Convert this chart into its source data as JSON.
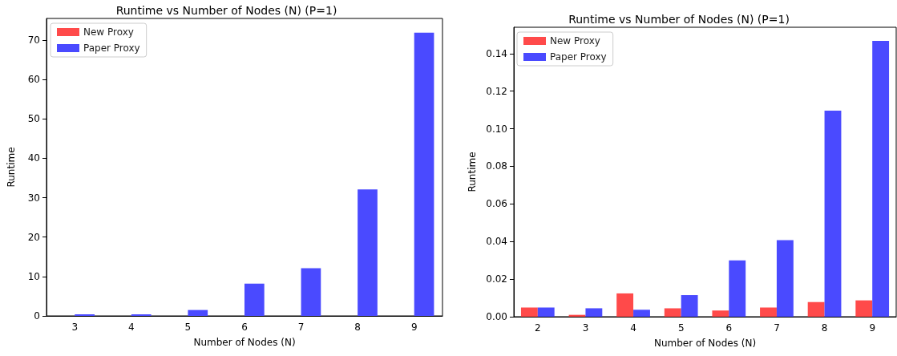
{
  "chart_data": [
    {
      "type": "bar",
      "title": "Runtime vs Number of Nodes (N) (P=1)",
      "xlabel": "Number of Nodes (N)",
      "ylabel": "Runtime",
      "categories": [
        "3",
        "4",
        "5",
        "6",
        "7",
        "8",
        "9"
      ],
      "series": [
        {
          "name": "New Proxy",
          "color": "#ff4a4a",
          "values": [
            0,
            0,
            0,
            0,
            0,
            0,
            0
          ]
        },
        {
          "name": "Paper Proxy",
          "color": "#4a4aff",
          "values": [
            0.4,
            0.4,
            1.5,
            8.2,
            12.1,
            32.1,
            71.9
          ]
        }
      ],
      "ylim": [
        0,
        75.5
      ],
      "yticks": [
        0,
        10,
        20,
        30,
        40,
        50,
        60,
        70
      ],
      "legend": "top left",
      "grid": false
    },
    {
      "type": "bar",
      "title": "Runtime vs Number of Nodes (N) (P=1)",
      "xlabel": "Number of Nodes (N)",
      "ylabel": "Runtime",
      "categories": [
        "2",
        "3",
        "4",
        "5",
        "6",
        "7",
        "8",
        "9"
      ],
      "series": [
        {
          "name": "New Proxy",
          "color": "#ff4a4a",
          "values": [
            0.0049,
            0.001,
            0.0124,
            0.0045,
            0.0033,
            0.0049,
            0.0078,
            0.0087
          ]
        },
        {
          "name": "Paper Proxy",
          "color": "#4a4aff",
          "values": [
            0.0049,
            0.0045,
            0.0037,
            0.0115,
            0.03,
            0.0407,
            0.1096,
            0.1467
          ]
        }
      ],
      "ylim": [
        0,
        0.154
      ],
      "yticks": [
        {
          "value": 0,
          "label": "0.00"
        },
        {
          "value": 0.02,
          "label": "0.02"
        },
        {
          "value": 0.04,
          "label": "0.04"
        },
        {
          "value": 0.06,
          "label": "0.06"
        },
        {
          "value": 0.08,
          "label": "0.08"
        },
        {
          "value": 0.1,
          "label": "0.10"
        },
        {
          "value": 0.12,
          "label": "0.12"
        },
        {
          "value": 0.14,
          "label": "0.14"
        }
      ],
      "legend": "top left",
      "grid": false
    }
  ]
}
